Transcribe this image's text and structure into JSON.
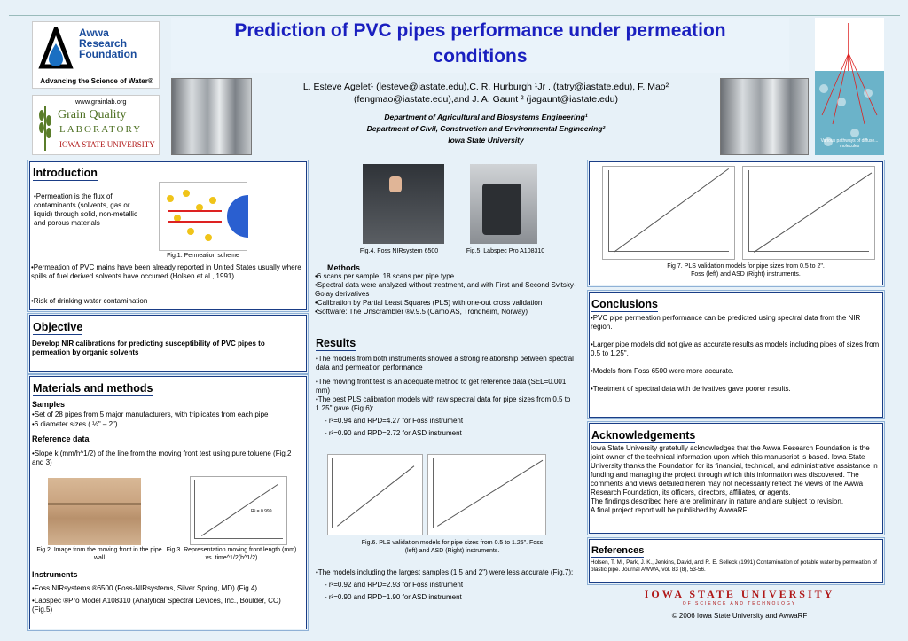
{
  "header": {
    "title": "Prediction of PVC pipes performance under permeation conditions",
    "awwa": {
      "name1": "Awwa",
      "name2": "Research",
      "name3": "Foundation",
      "tagline": "Advancing the Science of Water®"
    },
    "gql": {
      "url": "www.grainlab.org",
      "line1": "Grain Quality",
      "line2": "LABORATORY",
      "line3": "IOWA STATE UNIVERSITY"
    },
    "authors_line1": "L. Esteve Agelet¹ (lesteve@iastate.edu),C. R. Hurburgh ¹Jr . (tatry@iastate.edu), F. Mao²",
    "authors_line2": "(fengmao@iastate.edu),and J. A. Gaunt ² (jagaunt@iastate.edu)",
    "dept1": "Department of Agricultural and Biosystems Engineering¹",
    "dept2": "Department of Civil, Construction and Environmental Engineering²",
    "dept3": "Iowa State University",
    "permeation_graphic_text": "Various pathways of diffuse... molecules"
  },
  "introduction": {
    "heading": "Introduction",
    "bullet1": "•Permeation is the flux of contaminants (solvents, gas or liquid) through solid, non-metallic and porous materials",
    "fig1": "Fig.1. Permeation scheme",
    "bullet2": "•Permeation of PVC mains have been already reported in United States usually where spills of fuel derived solvents have occurred (Holsen et al., 1991)",
    "bullet3": "•Risk of drinking water contamination"
  },
  "objective": {
    "heading": "Objective",
    "text": "Develop NIR calibrations for predicting susceptibility of PVC pipes to permeation by organic solvents"
  },
  "materials": {
    "heading": "Materials and methods",
    "samples_heading": "Samples",
    "samples1": "•Set of 28 pipes from 5 major manufacturers, with triplicates from each pipe",
    "samples2": "•6 diameter sizes ( ½\" – 2\")",
    "reference_heading": "Reference data",
    "reference1": "•Slope k (mm/h^1/2) of the line from the moving front test using pure toluene (Fig.2 and 3)",
    "fig2": "Fig.2. Image from the moving front in the pipe wall",
    "fig3": "Fig.3. Representation moving front length (mm) vs. time^1/2(h^1/2)",
    "plot_annotation": "R² = 0.999",
    "instruments_heading": "Instruments",
    "instr1": "•Foss NIRsystems ®6500 (Foss-NIRsystems, Silver Spring, MD) (Fig.4)",
    "instr2": "•Labspec ®Pro Model A108310 (Analytical Spectral Devices, Inc., Boulder, CO) (Fig.5)"
  },
  "methods": {
    "fig4": "Fig.4. Foss NIRsystem 6500",
    "fig5": "Fig.5. Labspec Pro A108310",
    "heading": "Methods",
    "m1": "•6 scans per sample, 18 scans per pipe type",
    "m2": "•Spectral data were analyzed without treatment, and with First and Second Svitsky-Golay derivatives",
    "m3": "•Calibration by Partial Least Squares (PLS) with one-out cross validation",
    "m4": "•Software: The Unscrambler ®v.9.5 (Camo AS, Trondheim, Norway)"
  },
  "results": {
    "heading": "Results",
    "r1": "•The models from both instruments showed a strong relationship between spectral data and permeation performance",
    "r2": "•The moving front test is an adequate method to get reference data (SEL=0.001 mm)",
    "r3": "•The best PLS calibration models with raw spectral data for pipe sizes from 0.5 to 1.25\" gave (Fig.6):",
    "r3a": "- r²=0.94 and RPD=4.27 for Foss instrument",
    "r3b": "- r²=0.90 and RPD=2.72 for ASD instrument",
    "fig6": "Fig.6. PLS validation models for pipe sizes from 0.5 to 1.25\". Foss (left) and ASD (Right) instruments.",
    "r4": "•The models including the largest samples (1.5 and 2\") were less accurate (Fig.7):",
    "r4a": "- r²=0.92 and RPD=2.93 for Foss instrument",
    "r4b": "- r²=0.90 and RPD=1.90 for ASD instrument"
  },
  "fig7": {
    "caption": "Fig 7. PLS validation models for pipe sizes from 0.5 to 2\". Foss (left) and ASD (Right) instruments."
  },
  "conclusions": {
    "heading": "Conclusions",
    "c1": "•PVC pipe permeation performance can be predicted using spectral data from the NIR region.",
    "c2": "•Larger pipe models did not give as accurate results as models including pipes of sizes from 0.5 to 1.25\".",
    "c3": "•Models from Foss 6500 were more accurate.",
    "c4": "•Treatment of spectral data with derivatives gave poorer results."
  },
  "acknowledgements": {
    "heading": "Acknowledgements",
    "text": "Iowa State University gratefully acknowledges that the Awwa Research Foundation is the joint owner of the technical information upon which this manuscript is based. Iowa State University thanks the Foundation for its financial, technical, and administrative assistance in funding and managing the project through which this information was discovered. The comments and views detailed herein may not necessarily reflect the views of the Awwa Research Foundation, its officers, directors, affiliates, or agents.",
    "text2": "The findings described here are preliminary in nature and are subject to revision.",
    "text3": "A final project report will be published by AwwaRF."
  },
  "references": {
    "heading": "References",
    "ref1": "Holsen, T. M., Park, J. K., Jenkins, David, and R. E. Selleck (1991) Contamination of potable water by permeation of plastic pipe. Journal AWWA, vol. 83 (8), 53-56."
  },
  "footer": {
    "isu": "IOWA STATE UNIVERSITY",
    "isu_sub": "OF SCIENCE AND TECHNOLOGY",
    "copyright": "© 2006 Iowa State University and AwwaRF"
  }
}
